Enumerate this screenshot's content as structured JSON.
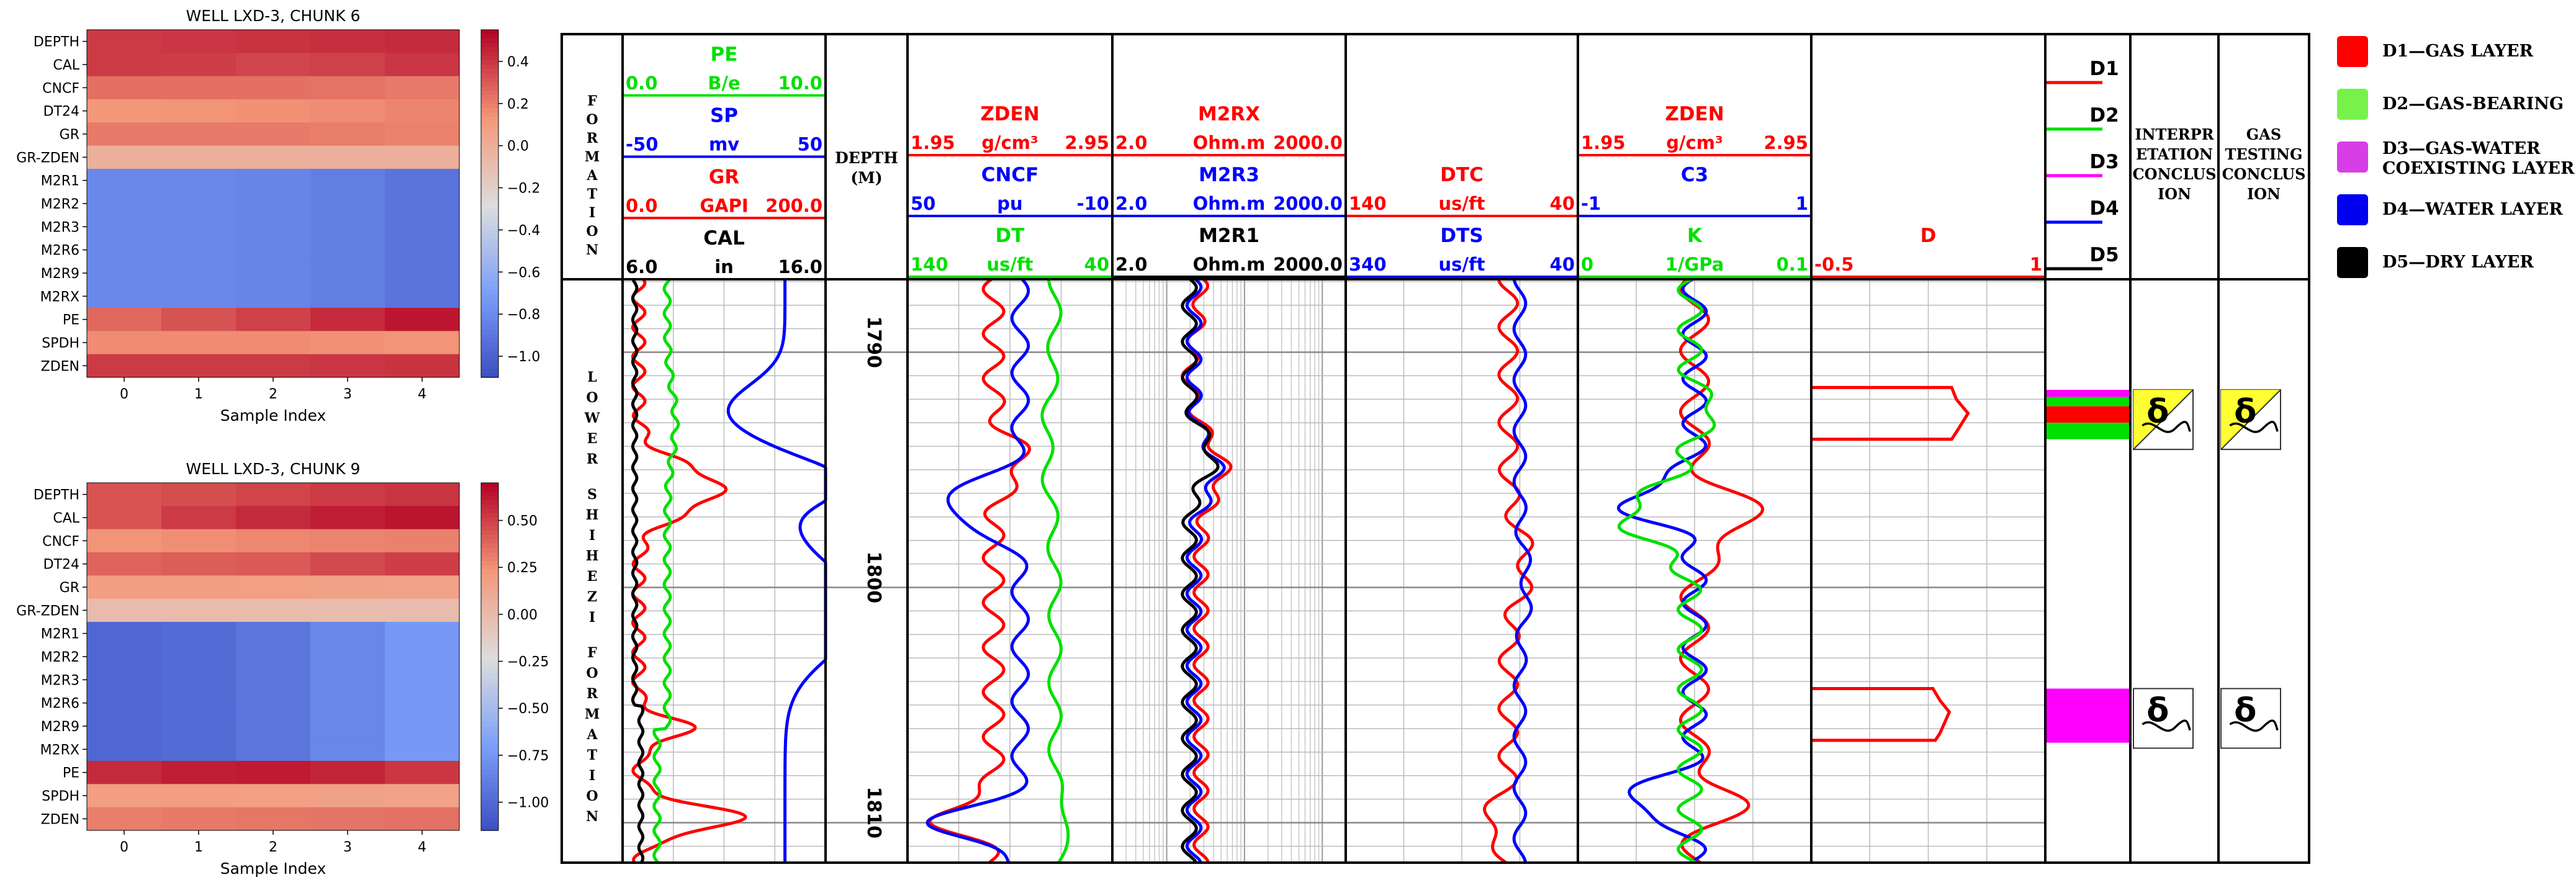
{
  "colors": {
    "red": "#ff0000",
    "green": "#00e000",
    "blue": "#0000ff",
    "black": "#000000",
    "magenta": "#ff00ff",
    "lightgreen": "#77f24a",
    "yellow": "#ffff33"
  },
  "heatmaps": [
    {
      "title": "WELL LXD-3, CHUNK 6",
      "xlabel": "Sample Index",
      "rows": [
        "DEPTH",
        "CAL",
        "CNCF",
        "DT24",
        "GR",
        "GR-ZDEN",
        "M2R1",
        "M2R2",
        "M2R3",
        "M2R6",
        "M2R9",
        "M2RX",
        "PE",
        "SPDH",
        "ZDEN"
      ],
      "cols": [
        "0",
        "1",
        "2",
        "3",
        "4"
      ],
      "vmin": -1.1,
      "vmax": 0.55,
      "cbar_ticks": [
        0.4,
        0.2,
        0.0,
        -0.2,
        -0.4,
        -0.6,
        -0.8,
        -1.0
      ],
      "cbar_labels": [
        "0.4",
        "0.2",
        "0.0",
        "−0.2",
        "−0.4",
        "−0.6",
        "−0.8",
        "−1.0"
      ],
      "values": [
        [
          0.4,
          0.41,
          0.42,
          0.43,
          0.44
        ],
        [
          0.4,
          0.39,
          0.37,
          0.38,
          0.41
        ],
        [
          0.25,
          0.25,
          0.25,
          0.24,
          0.22
        ],
        [
          0.14,
          0.15,
          0.16,
          0.17,
          0.19
        ],
        [
          0.22,
          0.22,
          0.22,
          0.21,
          0.2
        ],
        [
          0.0,
          0.0,
          0.0,
          0.0,
          0.0
        ],
        [
          -0.8,
          -0.8,
          -0.82,
          -0.85,
          -0.9
        ],
        [
          -0.8,
          -0.8,
          -0.82,
          -0.85,
          -0.9
        ],
        [
          -0.8,
          -0.8,
          -0.82,
          -0.85,
          -0.9
        ],
        [
          -0.8,
          -0.8,
          -0.82,
          -0.85,
          -0.9
        ],
        [
          -0.8,
          -0.8,
          -0.82,
          -0.85,
          -0.9
        ],
        [
          -0.8,
          -0.8,
          -0.82,
          -0.85,
          -0.9
        ],
        [
          0.27,
          0.33,
          0.38,
          0.44,
          0.5
        ],
        [
          0.17,
          0.17,
          0.17,
          0.16,
          0.15
        ],
        [
          0.4,
          0.4,
          0.4,
          0.41,
          0.42
        ]
      ]
    },
    {
      "title": "WELL LXD-3, CHUNK 9",
      "xlabel": "Sample Index",
      "rows": [
        "DEPTH",
        "CAL",
        "CNCF",
        "DT24",
        "GR",
        "GR-ZDEN",
        "M2R1",
        "M2R2",
        "M2R3",
        "M2R6",
        "M2R9",
        "M2RX",
        "PE",
        "SPDH",
        "ZDEN"
      ],
      "cols": [
        "0",
        "1",
        "2",
        "3",
        "4"
      ],
      "vmin": -1.15,
      "vmax": 0.7,
      "cbar_ticks": [
        0.5,
        0.25,
        0.0,
        -0.25,
        -0.5,
        -0.75,
        -1.0
      ],
      "cbar_labels": [
        "0.50",
        "0.25",
        "0.00",
        "−0.25",
        "−0.50",
        "−0.75",
        "−1.00"
      ],
      "values": [
        [
          0.45,
          0.47,
          0.5,
          0.53,
          0.55
        ],
        [
          0.45,
          0.53,
          0.58,
          0.62,
          0.65
        ],
        [
          0.25,
          0.27,
          0.29,
          0.3,
          0.31
        ],
        [
          0.4,
          0.42,
          0.43,
          0.48,
          0.52
        ],
        [
          0.2,
          0.2,
          0.19,
          0.18,
          0.17
        ],
        [
          0.0,
          0.0,
          0.0,
          0.0,
          0.0
        ],
        [
          -1.0,
          -0.98,
          -0.92,
          -0.82,
          -0.72
        ],
        [
          -1.0,
          -0.98,
          -0.92,
          -0.82,
          -0.72
        ],
        [
          -1.0,
          -0.98,
          -0.92,
          -0.82,
          -0.72
        ],
        [
          -1.0,
          -0.98,
          -0.92,
          -0.82,
          -0.72
        ],
        [
          -1.0,
          -0.98,
          -0.92,
          -0.82,
          -0.72
        ],
        [
          -1.0,
          -0.98,
          -0.92,
          -0.82,
          -0.72
        ],
        [
          0.58,
          0.62,
          0.63,
          0.6,
          0.54
        ],
        [
          0.2,
          0.2,
          0.19,
          0.18,
          0.17
        ],
        [
          0.32,
          0.33,
          0.34,
          0.35,
          0.36
        ]
      ]
    }
  ],
  "log": {
    "formation_label": "FORMATION",
    "formation_name": "LOWER SHIHEZI FORMATION",
    "depth_header": "DEPTH",
    "depth_unit": "(M)",
    "depth_ticks": [
      "1790",
      "1800",
      "1810"
    ],
    "track1": {
      "curves": [
        {
          "name": "PE",
          "unit": "B/e",
          "min": "0.0",
          "max": "10.0",
          "color": "#00e000"
        },
        {
          "name": "SP",
          "unit": "mv",
          "min": "-50",
          "max": "50",
          "color": "#0000ff"
        },
        {
          "name": "GR",
          "unit": "GAPI",
          "min": "0.0",
          "max": "200.0",
          "color": "#ff0000"
        },
        {
          "name": "CAL",
          "unit": "in",
          "min": "6.0",
          "max": "16.0",
          "color": "#000000"
        }
      ]
    },
    "track3": {
      "curves": [
        {
          "name": "ZDEN",
          "unit": "g/cm³",
          "min": "1.95",
          "max": "2.95",
          "color": "#ff0000"
        },
        {
          "name": "CNCF",
          "unit": "pu",
          "min": "50",
          "max": "-10",
          "color": "#0000ff"
        },
        {
          "name": "DT",
          "unit": "us/ft",
          "min": "140",
          "max": "40",
          "color": "#00e000"
        }
      ]
    },
    "track4": {
      "curves": [
        {
          "name": "M2RX",
          "unit": "Ohm.m",
          "min": "2.0",
          "max": "2000.0",
          "color": "#ff0000"
        },
        {
          "name": "M2R3",
          "unit": "Ohm.m",
          "min": "2.0",
          "max": "2000.0",
          "color": "#0000ff"
        },
        {
          "name": "M2R1",
          "unit": "Ohm.m",
          "min": "2.0",
          "max": "2000.0",
          "color": "#000000"
        }
      ]
    },
    "track5": {
      "curves": [
        {
          "name": "DTC",
          "unit": "us/ft",
          "min": "140",
          "max": "40",
          "color": "#ff0000"
        },
        {
          "name": "DTS",
          "unit": "us/ft",
          "min": "340",
          "max": "40",
          "color": "#0000ff"
        }
      ]
    },
    "track6": {
      "curves": [
        {
          "name": "ZDEN",
          "unit": "g/cm³",
          "min": "1.95",
          "max": "2.95",
          "color": "#ff0000"
        },
        {
          "name": "C3",
          "unit": "",
          "min": "-1",
          "max": "1",
          "color": "#0000ff"
        },
        {
          "name": "K",
          "unit": "1/GPa",
          "min": "0",
          "max": "0.1",
          "color": "#00e000"
        }
      ]
    },
    "track7": {
      "curves": [
        {
          "name": "D",
          "unit": "",
          "min": "-0.5",
          "max": "1",
          "color": "#ff0000"
        }
      ]
    },
    "class_legend": [
      {
        "name": "D1",
        "color": "#ff0000"
      },
      {
        "name": "D2",
        "color": "#00e000"
      },
      {
        "name": "D3",
        "color": "#ff00ff"
      },
      {
        "name": "D4",
        "color": "#0000ff"
      },
      {
        "name": "D5",
        "color": "#000000"
      }
    ],
    "interp_header": "INTERPRETATION CONCLUSION",
    "gas_header": "GAS TESTING CONCLUSION"
  },
  "legend": [
    {
      "label": "D1—GAS LAYER",
      "color": "#ff0000"
    },
    {
      "label": "D2—GAS-BEARING",
      "color": "#77f24a"
    },
    {
      "label": "D3—GAS-WATER COEXISTING LAYER",
      "color": "#d83ee6"
    },
    {
      "label": "D4—WATER LAYER",
      "color": "#0000ee"
    },
    {
      "label": "D5—DRY LAYER",
      "color": "#000000"
    }
  ]
}
